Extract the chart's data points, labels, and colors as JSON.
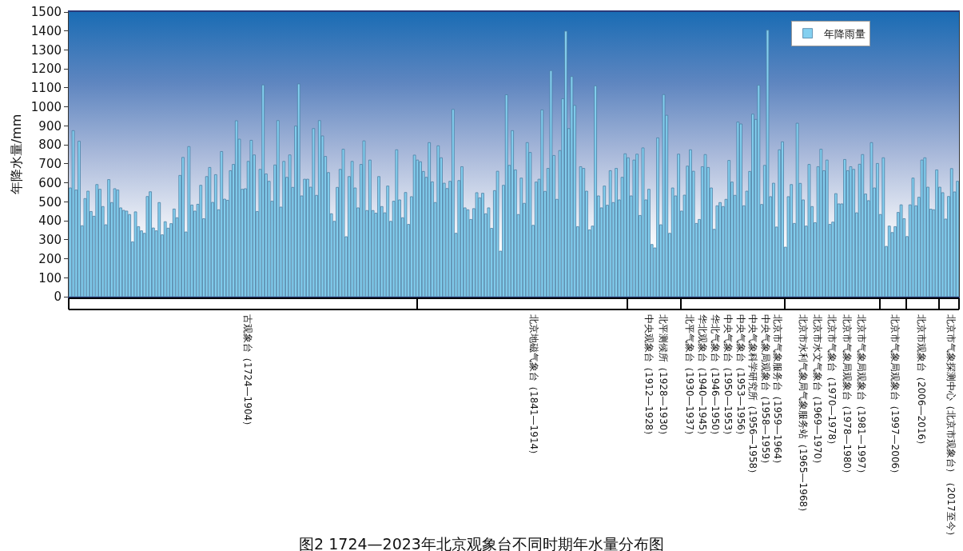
{
  "chart_data": {
    "type": "bar",
    "title": "图2 1724—2023年北京观象台不同时期年水量分布图",
    "ylabel": "年降水量/mm",
    "categories": [
      null,
      null,
      null,
      null,
      null,
      null,
      null,
      null,
      null,
      null,
      null,
      null,
      null,
      null,
      null,
      null,
      null,
      null,
      null,
      null,
      null,
      null,
      null,
      null,
      null,
      null,
      null,
      null,
      null,
      null,
      null,
      null,
      null,
      null,
      null,
      null,
      null,
      null,
      null,
      null,
      null,
      null,
      null,
      null,
      null,
      null,
      null,
      null,
      null,
      null,
      null,
      null,
      null,
      null,
      null,
      null,
      null,
      null,
      null,
      null,
      null,
      null,
      null,
      null,
      null,
      null,
      null,
      null,
      null,
      null,
      null,
      null,
      null,
      null,
      null,
      null,
      null,
      null,
      null,
      null,
      null,
      null,
      null,
      null,
      null,
      null,
      null,
      null,
      null,
      null,
      null,
      null,
      null,
      null,
      null,
      null,
      null,
      null,
      null,
      null,
      null,
      null,
      null,
      null,
      null,
      null,
      null,
      null,
      null,
      null,
      null,
      null,
      null,
      null,
      null,
      null,
      null,
      null,
      null,
      null,
      null,
      null,
      null,
      null,
      null,
      null,
      null,
      null,
      null,
      null,
      null,
      null,
      null,
      null,
      null,
      null,
      null,
      null,
      null,
      null,
      null,
      null,
      null,
      null,
      null,
      null,
      null,
      null,
      null,
      null,
      null,
      null,
      null,
      null,
      null,
      null,
      null,
      null,
      null,
      null,
      null,
      null,
      null,
      null,
      null,
      null,
      null,
      null,
      null,
      null,
      null,
      null,
      null,
      null,
      null,
      null,
      null,
      null,
      null,
      null,
      null,
      null,
      null,
      null,
      null,
      null,
      null,
      null,
      null,
      null,
      null,
      null,
      null,
      null,
      null,
      null,
      null,
      null,
      null,
      null,
      null,
      null,
      null,
      null,
      null,
      null,
      null,
      null,
      null,
      null,
      null,
      null,
      null,
      null,
      null,
      null,
      null,
      null,
      null,
      null,
      null,
      null,
      null,
      null,
      null,
      null,
      null,
      null,
      null,
      null,
      null,
      null,
      null,
      null,
      null,
      null,
      null,
      null,
      null,
      null,
      null,
      null,
      null,
      null,
      null,
      null,
      null,
      null,
      null,
      null,
      null,
      null,
      null,
      null,
      null,
      null,
      null,
      null,
      null,
      null,
      null,
      null,
      null,
      null,
      null,
      null,
      null,
      null,
      null,
      null,
      null,
      null,
      null,
      null,
      null,
      null,
      null,
      null,
      null,
      null,
      null,
      null,
      null,
      null,
      null,
      null,
      null,
      null,
      null,
      null,
      null,
      null,
      null,
      null,
      null,
      null,
      null,
      null,
      null,
      null
    ],
    "series": [
      {
        "name": "年降雨量",
        "color": "#84d0f0",
        "values": [
          573,
          875,
          562,
          819,
          374,
          517,
          556,
          449,
          424,
          591,
          566,
          475,
          379,
          617,
          496,
          569,
          562,
          468,
          455,
          451,
          433,
          289,
          447,
          369,
          347,
          334,
          528,
          553,
          362,
          347,
          496,
          326,
          395,
          361,
          385,
          462,
          416,
          639,
          734,
          341,
          791,
          483,
          451,
          487,
          587,
          411,
          633,
          681,
          497,
          643,
          458,
          765,
          514,
          508,
          664,
          697,
          927,
          830,
          566,
          569,
          713,
          824,
          747,
          449,
          671,
          1116,
          647,
          608,
          503,
          694,
          928,
          472,
          713,
          629,
          747,
          576,
          899,
          1121,
          531,
          619,
          619,
          577,
          886,
          534,
          928,
          847,
          739,
          654,
          437,
          397,
          576,
          671,
          777,
          316,
          633,
          713,
          573,
          468,
          697,
          821,
          454,
          720,
          454,
          440,
          633,
          475,
          442,
          583,
          397,
          503,
          774,
          510,
          416,
          549,
          381,
          527,
          746,
          720,
          711,
          660,
          629,
          812,
          605,
          496,
          795,
          732,
          598,
          570,
          608,
          987,
          334,
          612,
          685,
          468,
          458,
          407,
          464,
          548,
          521,
          545,
          437,
          468,
          360,
          559,
          661,
          240,
          587,
          1064,
          692,
          875,
          668,
          433,
          625,
          492,
          812,
          760,
          376,
          604,
          619,
          984,
          555,
          676,
          1191,
          744,
          513,
          770,
          1043,
          1399,
          886,
          1160,
          1008,
          369,
          685,
          676,
          556,
          352,
          372,
          1111,
          531,
          468,
          583,
          482,
          664,
          496,
          676,
          510,
          629,
          753,
          732,
          531,
          720,
          751,
          428,
          784,
          510,
          566,
          275,
          257,
          837,
          379,
          1065,
          956,
          334,
          573,
          531,
          751,
          451,
          535,
          688,
          774,
          661,
          386,
          407,
          685,
          749,
          681,
          573,
          355,
          479,
          496,
          475,
          513,
          718,
          604,
          534,
          920,
          910,
          479,
          556,
          660,
          962,
          934,
          1114,
          486,
          692,
          1404,
          527,
          598,
          367,
          774,
          816,
          261,
          527,
          591,
          386,
          914,
          597,
          510,
          372,
          697,
          475,
          390,
          685,
          777,
          664,
          720,
          381,
          393,
          543,
          489,
          489,
          723,
          664,
          685,
          671,
          442,
          698,
          749,
          541,
          506,
          812,
          573,
          702,
          433,
          732,
          265,
          372,
          338,
          369,
          444,
          484,
          411,
          317,
          484,
          625,
          479,
          524,
          720,
          732,
          577,
          461,
          458,
          668,
          577,
          548,
          409,
          528,
          675,
          552,
          608
        ]
      }
    ],
    "ylim": [
      0,
      1500
    ],
    "yticks": [
      0,
      100,
      200,
      300,
      400,
      500,
      600,
      700,
      800,
      900,
      1000,
      1100,
      1200,
      1300,
      1400,
      1500
    ],
    "tick_labels": "y",
    "legend": "top right",
    "annotations": [
      "古观象台（1724—1904）",
      "北京地磁气象台（1841—1914）",
      "中央观象台（1912—1928）",
      "北平测候所（1928—1930）",
      "北平气象台（1930—1937）",
      "华北观象台（1940—1945）",
      "华北气象台（1946—1950）",
      "中央气象台（1950—1953）",
      "中央气象台（1953—1956）",
      "中央气象科学研究所（1956—1958）",
      "中央气象局观象台（1958—1959）",
      "北京市气象服务台（1959—1964）",
      "北京市水利气象局气象服务站（1965—1968）",
      "北京市水文气象台（1969—1970）",
      "北京市气象台（1970—1978）",
      "北京市气象局观象台（1978—1980）",
      "北京市气象局观象台（1981—1997）",
      "北京市气象局观象台（1997—2006）",
      "北京市观象台（2006—2016）",
      "北京市气象探测中心（北京市观象台）（2017至今）"
    ]
  }
}
